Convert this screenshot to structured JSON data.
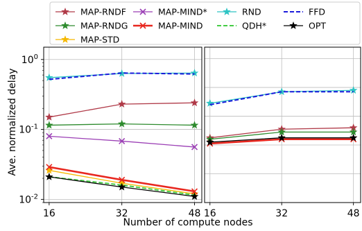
{
  "chart_data": [
    {
      "type": "line",
      "panel": "left",
      "xlabel": "Number of compute nodes",
      "ylabel": "Ave. normalized delay",
      "yscale": "log",
      "ylim": [
        0.009,
        1.5
      ],
      "x": [
        16,
        32,
        48
      ],
      "x_tick_labels": [
        "16",
        "32",
        "48"
      ],
      "y_tick_labels": [
        "10",
        "10",
        "10"
      ],
      "y_tick_exponents": [
        "0",
        "-1",
        "-2"
      ],
      "grid": true,
      "series": [
        {
          "name": "MAP-RNDF",
          "color": "#b03a48",
          "marker": "star",
          "dash": "solid",
          "values": [
            0.15,
            0.23,
            0.24
          ]
        },
        {
          "name": "MAP-RNDG",
          "color": "#2e8b2e",
          "marker": "star",
          "dash": "solid",
          "values": [
            0.115,
            0.12,
            0.115
          ]
        },
        {
          "name": "MAP-STD",
          "color": "#f5b800",
          "marker": "star",
          "dash": "solid",
          "values": [
            0.026,
            0.017,
            0.012
          ]
        },
        {
          "name": "MAP-MIND*",
          "color": "#9b3fb5",
          "marker": "x",
          "dash": "solid",
          "values": [
            0.08,
            0.068,
            0.056
          ]
        },
        {
          "name": "MAP-MIND",
          "color": "#e8271f",
          "marker": "x",
          "dash": "solid",
          "values": [
            0.029,
            0.019,
            0.013
          ]
        },
        {
          "name": "RND",
          "color": "#2ec4c4",
          "marker": "star",
          "dash": "solid",
          "values": [
            0.55,
            0.63,
            0.64
          ]
        },
        {
          "name": "QDH*",
          "color": "#44cc44",
          "marker": "none",
          "dash": "dashed",
          "values": [
            0.021,
            0.016,
            0.0115
          ]
        },
        {
          "name": "FFD",
          "color": "#1a1adb",
          "marker": "none",
          "dash": "dashed",
          "values": [
            0.52,
            0.64,
            0.62
          ]
        },
        {
          "name": "OPT",
          "color": "#000000",
          "marker": "star",
          "dash": "solid",
          "values": [
            0.021,
            0.015,
            0.011
          ]
        }
      ]
    },
    {
      "type": "line",
      "panel": "right",
      "xlabel": "Number of compute nodes",
      "yscale": "linear",
      "x": [
        16,
        32,
        48
      ],
      "x_tick_labels": [
        "16",
        "32",
        "48"
      ],
      "grid": true,
      "series": [
        {
          "name": "MAP-RNDF",
          "color": "#b03a48",
          "marker": "star",
          "dash": "solid",
          "values": [
            0.45,
            0.51,
            0.52
          ]
        },
        {
          "name": "MAP-RNDG",
          "color": "#2e8b2e",
          "marker": "star",
          "dash": "solid",
          "values": [
            0.44,
            0.49,
            0.49
          ]
        },
        {
          "name": "MAP-MIND",
          "color": "#e8271f",
          "marker": "x",
          "dash": "solid",
          "values": [
            0.41,
            0.44,
            0.44
          ]
        },
        {
          "name": "RND",
          "color": "#2ec4c4",
          "marker": "star",
          "dash": "solid",
          "values": [
            0.69,
            0.77,
            0.78
          ]
        },
        {
          "name": "FFD",
          "color": "#1a1adb",
          "marker": "none",
          "dash": "dashed",
          "values": [
            0.68,
            0.77,
            0.77
          ]
        },
        {
          "name": "OPT",
          "color": "#000000",
          "marker": "star",
          "dash": "solid",
          "values": [
            0.42,
            0.45,
            0.45
          ]
        }
      ]
    }
  ],
  "legend": {
    "placement": "top",
    "entries": [
      "MAP-RNDF",
      "MAP-MIND*",
      "RND",
      "FFD",
      "MAP-RNDG",
      "MAP-MIND",
      "QDH*",
      "OPT",
      "MAP-STD"
    ]
  }
}
